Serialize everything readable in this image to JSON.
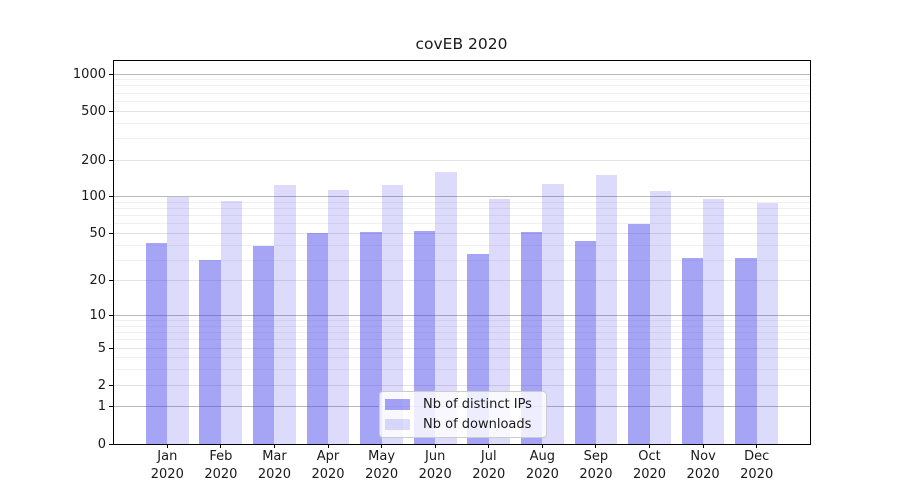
{
  "chart_data": {
    "type": "bar",
    "title": "covEB 2020",
    "xlabel": "",
    "ylabel": "",
    "yscale": "log1p (log-like axis including 0; ticks in 1-2-5 steps)",
    "ylim": [
      0,
      1280
    ],
    "grid": "horizontal, major and minor",
    "legend_position": "lower center",
    "categories": [
      "Jan 2020",
      "Feb 2020",
      "Mar 2020",
      "Apr 2020",
      "May 2020",
      "Jun 2020",
      "Jul 2020",
      "Aug 2020",
      "Sep 2020",
      "Oct 2020",
      "Nov 2020",
      "Dec 2020"
    ],
    "series": [
      {
        "name": "Nb of distinct IPs",
        "color": "rgba(62,56,233,0.46)",
        "values": [
          42,
          30,
          39,
          50,
          51,
          52,
          34,
          51,
          43,
          60,
          31,
          31
        ]
      },
      {
        "name": "Nb of downloads",
        "color": "rgba(62,56,233,0.18)",
        "values": [
          100,
          92,
          124,
          113,
          124,
          160,
          96,
          128,
          150,
          112,
          96,
          89
        ]
      }
    ],
    "y_ticks": [
      0,
      1,
      2,
      5,
      10,
      20,
      50,
      100,
      200,
      500,
      1000
    ],
    "y_minor_ticks": [
      3,
      4,
      6,
      7,
      8,
      9,
      30,
      40,
      60,
      70,
      80,
      90,
      300,
      400,
      600,
      700,
      800,
      900
    ],
    "grid_colors": {
      "major": "#b9b9b9",
      "labeled": "#e3e3e3",
      "minor": "#f0f0f0"
    },
    "axis_color": "#000000",
    "text_color": "#1a1a1a",
    "background": "#ffffff"
  }
}
